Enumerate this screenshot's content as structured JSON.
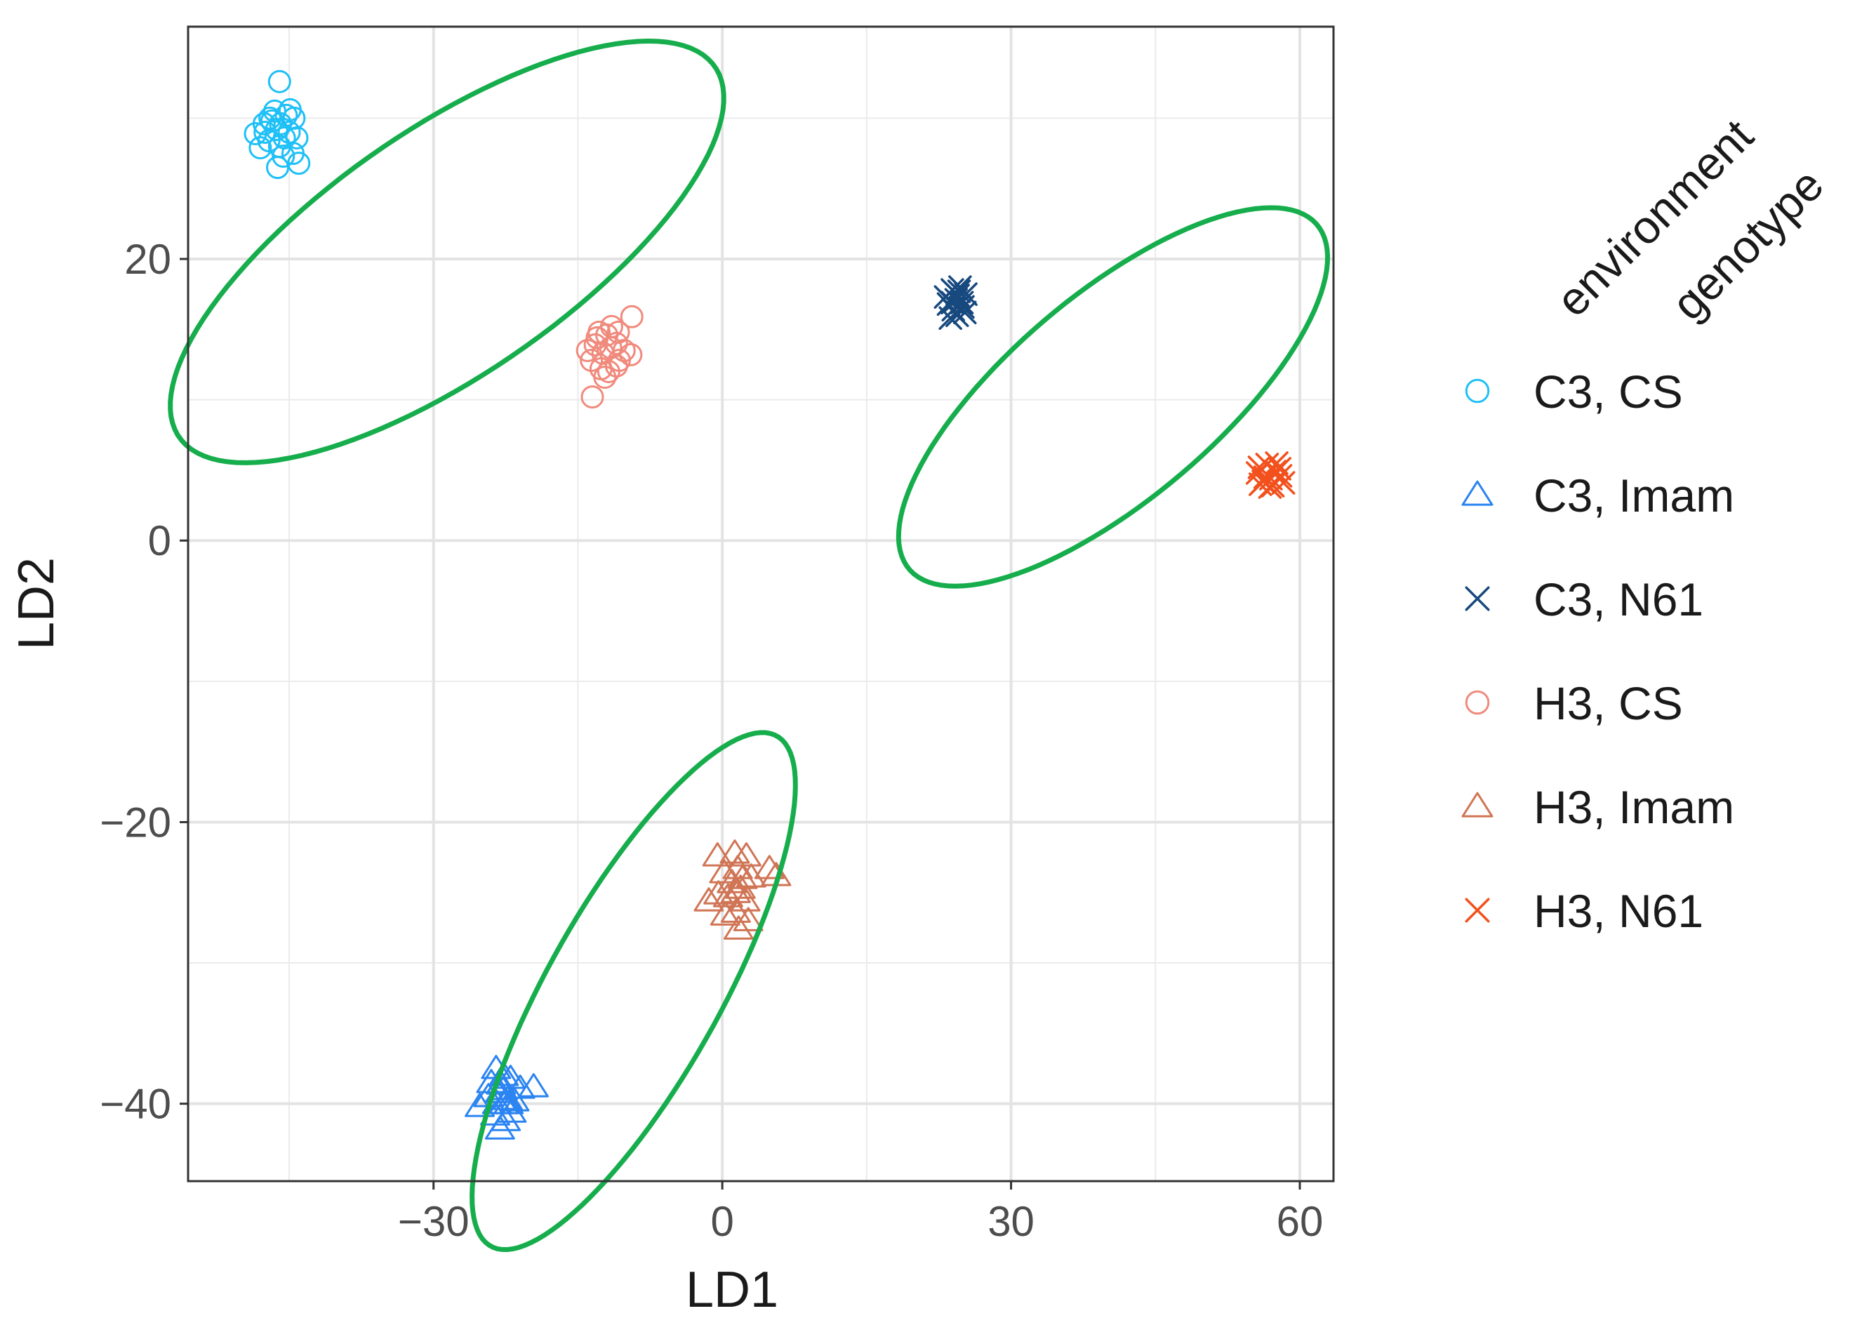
{
  "chart_data": {
    "type": "scatter",
    "xlabel": "LD1",
    "ylabel": "LD2",
    "xlim": [
      -55.5,
      63.5
    ],
    "ylim": [
      -45.5,
      36.5
    ],
    "x_ticks": [
      -30,
      0,
      30,
      60
    ],
    "y_ticks": [
      20,
      0,
      -20,
      -40
    ],
    "x_tick_labels": [
      "−30",
      "0",
      "30",
      "60"
    ],
    "y_tick_labels": [
      "20",
      "0",
      "−20",
      "−40"
    ],
    "x_minor": [
      -45,
      -15,
      15,
      45
    ],
    "y_minor": [
      30,
      10,
      -10,
      -30
    ],
    "grid": true,
    "legend": {
      "titles": [
        "environment",
        "genotype"
      ],
      "position": "right"
    },
    "series": [
      {
        "name": "C3, CS",
        "shape": "circle",
        "color": "#1ec0f7",
        "points": [
          [
            -48.5,
            28.9
          ],
          [
            -47.6,
            29.6
          ],
          [
            -48.0,
            27.9
          ],
          [
            -47.0,
            30.0
          ],
          [
            -46.3,
            29.2
          ],
          [
            -45.9,
            29.6
          ],
          [
            -47.1,
            28.4
          ],
          [
            -46.0,
            28.0
          ],
          [
            -45.3,
            30.2
          ],
          [
            -44.9,
            30.6
          ],
          [
            -45.6,
            27.3
          ],
          [
            -46.2,
            26.5
          ],
          [
            -44.6,
            27.5
          ],
          [
            -46.0,
            32.6
          ],
          [
            -44.2,
            28.6
          ],
          [
            -44.0,
            26.8
          ],
          [
            -46.5,
            30.5
          ],
          [
            -45.0,
            29.0
          ],
          [
            -47.5,
            29.0
          ],
          [
            -44.5,
            30.0
          ],
          [
            -46.8,
            29.8
          ],
          [
            -45.5,
            28.6
          ]
        ]
      },
      {
        "name": "C3, Imam",
        "shape": "triangle",
        "color": "#2b84f2",
        "points": [
          [
            -23.5,
            -37.5
          ],
          [
            -22.7,
            -38.0
          ],
          [
            -22.0,
            -38.2
          ],
          [
            -24.3,
            -39.5
          ],
          [
            -23.1,
            -39.2
          ],
          [
            -22.3,
            -39.7
          ],
          [
            -21.6,
            -39.8
          ],
          [
            -19.6,
            -38.8
          ],
          [
            -25.2,
            -40.2
          ],
          [
            -23.6,
            -40.8
          ],
          [
            -22.5,
            -41.2
          ],
          [
            -21.9,
            -40.6
          ],
          [
            -23.1,
            -41.8
          ],
          [
            -22.7,
            -40.0
          ],
          [
            -24.0,
            -38.5
          ],
          [
            -21.0,
            -38.9
          ],
          [
            -22.8,
            -39.0
          ],
          [
            -23.4,
            -40.0
          ],
          [
            -22.2,
            -40.0
          ],
          [
            -23.0,
            -38.6
          ]
        ]
      },
      {
        "name": "C3, N61",
        "shape": "cross",
        "color": "#17497f",
        "points": [
          [
            23.5,
            16.8
          ],
          [
            24.3,
            17.1
          ],
          [
            25.0,
            16.6
          ],
          [
            23.9,
            17.8
          ],
          [
            24.7,
            18.0
          ],
          [
            24.4,
            16.0
          ],
          [
            23.2,
            17.3
          ],
          [
            25.3,
            17.5
          ],
          [
            24.0,
            16.4
          ],
          [
            24.9,
            16.9
          ],
          [
            23.7,
            15.8
          ],
          [
            25.2,
            16.2
          ],
          [
            24.5,
            17.4
          ],
          [
            23.9,
            16.9
          ],
          [
            24.6,
            17.7
          ]
        ]
      },
      {
        "name": "H3, CS",
        "shape": "circle",
        "color": "#f08a7c",
        "points": [
          [
            -14.0,
            13.5
          ],
          [
            -13.0,
            14.4
          ],
          [
            -12.4,
            13.3
          ],
          [
            -13.6,
            12.8
          ],
          [
            -12.0,
            14.6
          ],
          [
            -11.5,
            15.2
          ],
          [
            -11.0,
            14.0
          ],
          [
            -12.6,
            12.2
          ],
          [
            -11.8,
            12.0
          ],
          [
            -10.7,
            12.8
          ],
          [
            -10.2,
            13.5
          ],
          [
            -9.5,
            13.2
          ],
          [
            -9.4,
            15.9
          ],
          [
            -13.5,
            10.2
          ],
          [
            -12.2,
            11.6
          ],
          [
            -11.0,
            12.4
          ],
          [
            -12.8,
            14.8
          ],
          [
            -13.2,
            13.9
          ],
          [
            -10.8,
            14.8
          ],
          [
            -11.6,
            13.7
          ]
        ]
      },
      {
        "name": "H3, Imam",
        "shape": "triangle",
        "color": "#d07555",
        "points": [
          [
            -0.5,
            -22.4
          ],
          [
            1.3,
            -22.2
          ],
          [
            2.5,
            -22.4
          ],
          [
            0.2,
            -23.6
          ],
          [
            1.6,
            -23.3
          ],
          [
            3.0,
            -23.9
          ],
          [
            4.9,
            -23.3
          ],
          [
            5.6,
            -23.8
          ],
          [
            -0.4,
            -25.1
          ],
          [
            0.6,
            -25.3
          ],
          [
            1.9,
            -24.7
          ],
          [
            2.4,
            -25.6
          ],
          [
            0.3,
            -26.6
          ],
          [
            1.4,
            -26.4
          ],
          [
            2.7,
            -27.0
          ],
          [
            1.7,
            -27.6
          ],
          [
            1.0,
            -24.3
          ],
          [
            2.1,
            -24.0
          ],
          [
            -1.4,
            -25.6
          ],
          [
            1.4,
            -25.0
          ]
        ]
      },
      {
        "name": "H3, N61",
        "shape": "cross",
        "color": "#f2501c",
        "points": [
          [
            56.4,
            4.5
          ],
          [
            57.4,
            4.9
          ],
          [
            55.8,
            5.2
          ],
          [
            58.0,
            4.6
          ],
          [
            56.9,
            3.8
          ],
          [
            57.6,
            5.5
          ],
          [
            55.9,
            4.0
          ],
          [
            57.0,
            4.4
          ],
          [
            58.3,
            4.1
          ],
          [
            56.6,
            5.4
          ],
          [
            57.2,
            3.9
          ],
          [
            55.6,
            4.8
          ],
          [
            57.9,
            5.1
          ],
          [
            56.2,
            4.2
          ]
        ]
      }
    ],
    "annotations": [
      {
        "type": "ellipse",
        "color": "#16ad4c",
        "cx": -28.6,
        "cy": 20.5,
        "rx": 31.0,
        "ry": 9.5,
        "angle_deg": 23.1
      },
      {
        "type": "ellipse",
        "color": "#16ad4c",
        "cx": 40.6,
        "cy": 10.2,
        "rx": 24.7,
        "ry": 8.2,
        "angle_deg": 27.2
      },
      {
        "type": "ellipse",
        "color": "#16ad4c",
        "cx": -9.2,
        "cy": -32.0,
        "rx": 23.6,
        "ry": 7.9,
        "angle_deg": 48.2
      }
    ]
  }
}
